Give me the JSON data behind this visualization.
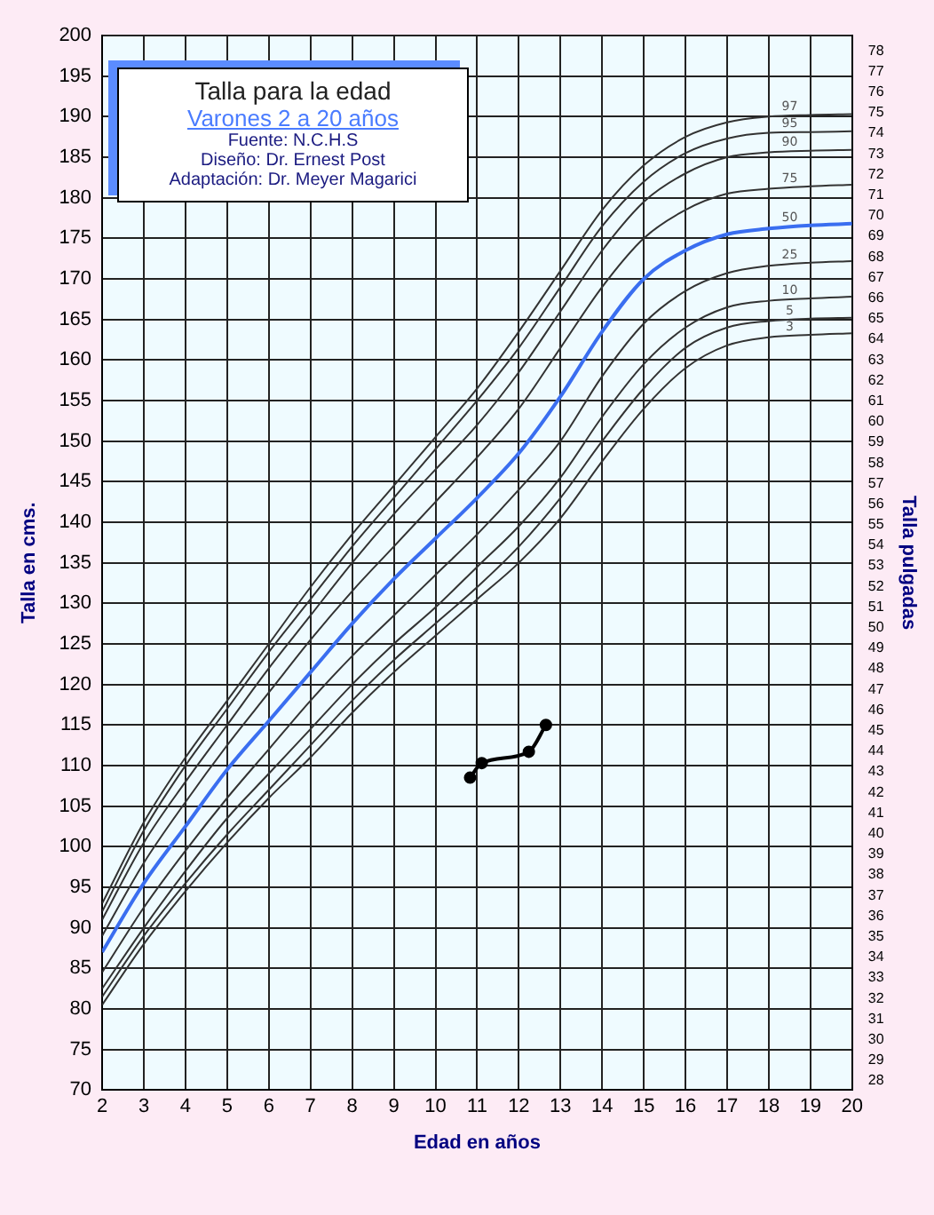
{
  "chart_data": {
    "type": "line",
    "title": "Talla para la edad",
    "subtitle": "Varones 2 a 20 años",
    "annotations": [
      "Fuente: N.C.H.S",
      "Diseño: Dr. Ernest Post",
      "Adaptación: Dr. Meyer Magarici"
    ],
    "xlabel": "Edad en años",
    "ylabel": "Talla en cms.",
    "y2label": "Talla pulgadas",
    "x": [
      2,
      3,
      4,
      5,
      6,
      7,
      8,
      9,
      10,
      11,
      12,
      13,
      14,
      15,
      16,
      17,
      18,
      19,
      20
    ],
    "series": [
      {
        "name": "97",
        "color": "#333333",
        "values": [
          93,
          103,
          111,
          118,
          125,
          132,
          138.5,
          144.5,
          150.5,
          156.5,
          163.5,
          171,
          178.5,
          184,
          187.5,
          189.3,
          190,
          190.2,
          190.3
        ]
      },
      {
        "name": "95",
        "color": "#333333",
        "values": [
          92,
          102,
          110,
          117,
          124,
          130.5,
          137,
          143,
          149,
          155,
          161.5,
          169,
          176.5,
          182,
          185.5,
          187.3,
          188,
          188.1,
          188.2
        ]
      },
      {
        "name": "90",
        "color": "#333333",
        "values": [
          91,
          100.5,
          108,
          115,
          122,
          128.5,
          135,
          141,
          146.5,
          152,
          158.5,
          166,
          173.5,
          179.5,
          183,
          185,
          185.6,
          185.8,
          185.9
        ]
      },
      {
        "name": "75",
        "color": "#333333",
        "values": [
          89,
          98,
          105.5,
          112.5,
          119,
          125.5,
          131.5,
          137,
          142.5,
          148,
          154,
          161.5,
          169,
          175,
          178.5,
          180.5,
          181.1,
          181.4,
          181.6
        ]
      },
      {
        "name": "50",
        "color": "#3a6ef0",
        "values": [
          87,
          95.5,
          102.5,
          109.5,
          115.5,
          121.5,
          127.5,
          133,
          138,
          143,
          148.5,
          155.5,
          163.5,
          170,
          173.5,
          175.5,
          176.2,
          176.6,
          176.8
        ]
      },
      {
        "name": "25",
        "color": "#333333",
        "values": [
          84.5,
          92.5,
          99.5,
          106,
          112,
          118,
          123.5,
          128.5,
          133.5,
          138.5,
          144,
          150,
          158,
          164.5,
          168.5,
          170.7,
          171.6,
          172,
          172.2
        ]
      },
      {
        "name": "10",
        "color": "#333333",
        "values": [
          82.5,
          90,
          97,
          103.5,
          109,
          114.5,
          120,
          125,
          129.5,
          134.5,
          139.5,
          145.5,
          153,
          159.5,
          164,
          166.5,
          167.3,
          167.6,
          167.8
        ]
      },
      {
        "name": "5",
        "color": "#333333",
        "values": [
          81.5,
          89,
          95.5,
          101.5,
          107,
          112.5,
          118,
          123,
          127.5,
          132,
          137,
          143,
          150,
          156.5,
          161.5,
          164,
          164.8,
          165.1,
          165.2
        ]
      },
      {
        "name": "3",
        "color": "#333333",
        "values": [
          80.5,
          88,
          94.5,
          100.5,
          106,
          111,
          116.5,
          121.5,
          126,
          130.5,
          135,
          140.5,
          147.5,
          154,
          159,
          161.8,
          162.8,
          163.1,
          163.3
        ]
      },
      {
        "color": "#000000",
        "marker": "circle",
        "x": [
          10.83,
          11.11,
          12.24,
          12.65
        ],
        "values": [
          108.5,
          110.3,
          111.7,
          115
        ]
      }
    ],
    "xlim": [
      2,
      20
    ],
    "xticks": [
      2,
      3,
      4,
      5,
      6,
      7,
      8,
      9,
      10,
      11,
      12,
      13,
      14,
      15,
      16,
      17,
      18,
      19,
      20
    ],
    "ylim": [
      70,
      200
    ],
    "yticks": [
      70,
      75,
      80,
      85,
      90,
      95,
      100,
      105,
      110,
      115,
      120,
      125,
      130,
      135,
      140,
      145,
      150,
      155,
      160,
      165,
      170,
      175,
      180,
      185,
      190,
      195,
      200
    ],
    "y2lim": [
      27.56,
      78.74
    ],
    "y2ticks": [
      28,
      29,
      30,
      31,
      32,
      33,
      34,
      35,
      36,
      37,
      38,
      39,
      40,
      41,
      42,
      43,
      44,
      45,
      46,
      47,
      48,
      49,
      50,
      51,
      52,
      53,
      54,
      55,
      56,
      57,
      58,
      59,
      60,
      61,
      62,
      63,
      64,
      65,
      66,
      67,
      68,
      69,
      70,
      71,
      72,
      73,
      74,
      75,
      76,
      77,
      78
    ],
    "grid": true,
    "legend": false,
    "marker": "none",
    "line_style": "solid"
  }
}
